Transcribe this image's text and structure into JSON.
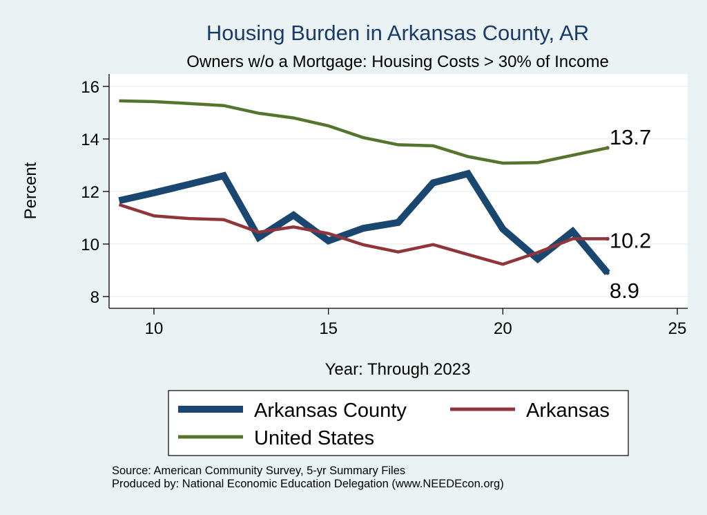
{
  "chart_data": {
    "type": "line",
    "title": "Housing Burden in Arkansas County, AR",
    "subtitle": "Owners w/o a Mortgage: Housing Costs > 30% of Income",
    "xlabel": "Year: Through 2023",
    "ylabel": "Percent",
    "xlim": [
      9,
      25
    ],
    "ylim": [
      8,
      16
    ],
    "xticks": [
      10,
      15,
      20,
      25
    ],
    "yticks": [
      8,
      10,
      12,
      14,
      16
    ],
    "grid": "horizontal",
    "legend_position": "bottom",
    "x": [
      9,
      10,
      11,
      12,
      13,
      14,
      15,
      16,
      17,
      18,
      19,
      20,
      21,
      22,
      23
    ],
    "series": [
      {
        "name": "Arkansas County",
        "color": "#1a476f",
        "values": [
          11.65,
          11.95,
          12.27,
          12.6,
          10.25,
          11.1,
          10.12,
          10.6,
          10.82,
          12.33,
          12.68,
          10.57,
          9.43,
          10.48,
          8.9
        ],
        "end_label": "8.9"
      },
      {
        "name": "Arkansas",
        "color": "#90353b",
        "values": [
          11.5,
          11.07,
          10.97,
          10.93,
          10.45,
          10.65,
          10.4,
          9.97,
          9.7,
          9.98,
          9.6,
          9.23,
          9.68,
          10.2,
          10.2
        ],
        "end_label": "10.2"
      },
      {
        "name": "United States",
        "color": "#55752f",
        "values": [
          15.45,
          15.42,
          15.35,
          15.27,
          14.98,
          14.8,
          14.5,
          14.05,
          13.78,
          13.74,
          13.33,
          13.08,
          13.1,
          13.38,
          13.66
        ],
        "end_label": "13.7"
      }
    ]
  },
  "footer": {
    "source": "Source: American Community Survey, 5-yr Summary Files",
    "produced_by": "Produced by: National Economic Education Delegation (www.NEEDEcon.org)"
  }
}
